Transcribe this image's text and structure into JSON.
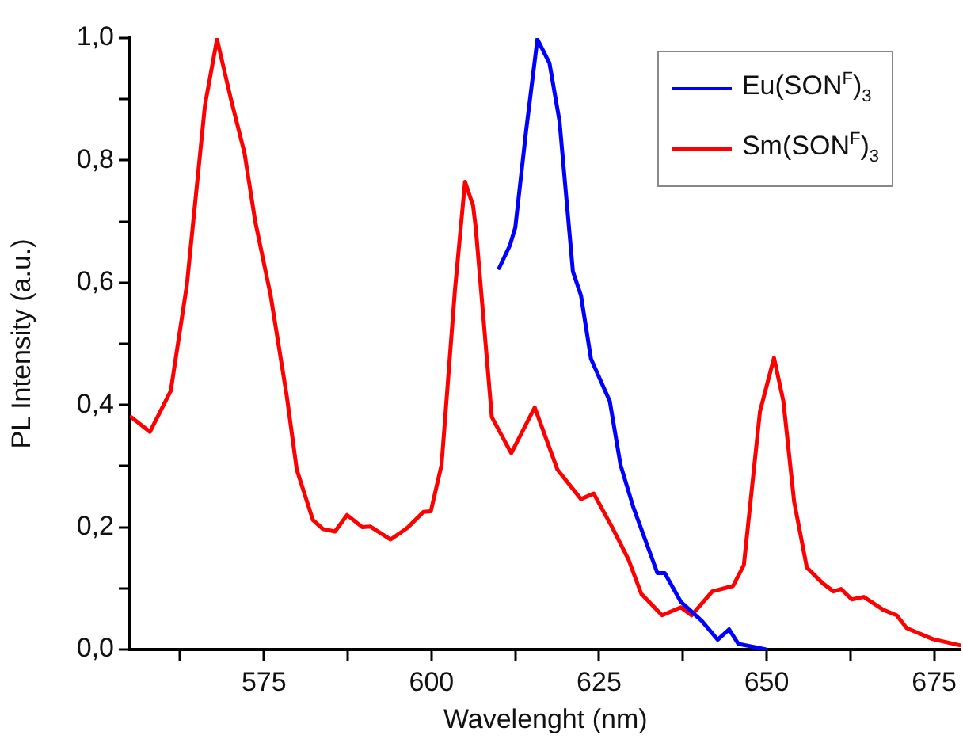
{
  "chart_data": {
    "type": "line",
    "xlabel": "Wavelenght (nm)",
    "ylabel": "PL Intensity (a.u.)",
    "xlim": [
      555,
      679
    ],
    "xticks": [
      {
        "value": 562.5,
        "label": null
      },
      575,
      {
        "value": 587.5,
        "label": null
      },
      600,
      {
        "value": 612.5,
        "label": null
      },
      625,
      {
        "value": 637.5,
        "label": null
      },
      650,
      {
        "value": 662.5,
        "label": null
      },
      675
    ],
    "ylim": [
      0,
      1
    ],
    "yticks": [
      {
        "value": 0,
        "label": "0,0"
      },
      {
        "value": 0.1,
        "label": null
      },
      {
        "value": 0.2,
        "label": "0,2"
      },
      {
        "value": 0.3,
        "label": null
      },
      {
        "value": 0.4,
        "label": "0,4"
      },
      {
        "value": 0.5,
        "label": null
      },
      {
        "value": 0.6,
        "label": "0,6"
      },
      {
        "value": 0.7,
        "label": null
      },
      {
        "value": 0.8,
        "label": "0,8"
      },
      {
        "value": 0.9,
        "label": null
      },
      {
        "value": 1,
        "label": "1,0"
      }
    ],
    "grid": false,
    "legend": "top right",
    "marker": "none",
    "line_style": "solid",
    "series": [
      {
        "name": "Eu(SON$^{F}$)$_{3}$",
        "color": "#0000ff",
        "x": [
          610.1,
          611.7,
          612.5,
          614.1,
          615.8,
          617.6,
          619.1,
          621.1,
          622.3,
          623.8,
          626.6,
          628.2,
          630.1,
          632.1,
          633.7,
          634.8,
          637.2,
          640.3,
          642.7,
          644.4,
          645.8,
          648.2,
          649.9
        ],
        "values": [
          0.624,
          0.661,
          0.69,
          0.847,
          0.998,
          0.959,
          0.864,
          0.618,
          0.579,
          0.475,
          0.406,
          0.302,
          0.233,
          0.173,
          0.125,
          0.125,
          0.078,
          0.047,
          0.016,
          0.033,
          0.009,
          0.004,
          0.0
        ]
      },
      {
        "name": "Sm(SON$^{F}$)$_{3}$",
        "color": "#ff0000",
        "x": [
          555.2,
          558.0,
          561.1,
          563.5,
          566.2,
          568.0,
          570.1,
          572.1,
          573.7,
          576.0,
          578.4,
          579.9,
          582.3,
          583.8,
          585.6,
          587.4,
          589.7,
          590.9,
          593.9,
          596.4,
          598.8,
          599.9,
          601.5,
          603.5,
          605.0,
          606.2,
          606.6,
          609.0,
          611.9,
          615.4,
          618.8,
          622.3,
          624.2,
          627.0,
          629.4,
          631.3,
          634.4,
          637.2,
          638.8,
          641.9,
          645.0,
          646.6,
          649.0,
          651.1,
          652.5,
          654.1,
          656.0,
          658.4,
          660.0,
          661.1,
          662.7,
          664.5,
          667.4,
          669.4,
          670.9,
          674.8,
          678.8
        ],
        "values": [
          0.38,
          0.356,
          0.423,
          0.596,
          0.89,
          0.998,
          0.899,
          0.812,
          0.7,
          0.579,
          0.415,
          0.294,
          0.212,
          0.197,
          0.193,
          0.22,
          0.2,
          0.201,
          0.18,
          0.199,
          0.225,
          0.226,
          0.302,
          0.588,
          0.765,
          0.726,
          0.69,
          0.38,
          0.321,
          0.396,
          0.294,
          0.246,
          0.255,
          0.199,
          0.147,
          0.091,
          0.056,
          0.069,
          0.056,
          0.095,
          0.104,
          0.138,
          0.389,
          0.477,
          0.406,
          0.242,
          0.134,
          0.108,
          0.095,
          0.099,
          0.082,
          0.086,
          0.065,
          0.056,
          0.035,
          0.017,
          0.007
        ]
      }
    ]
  }
}
